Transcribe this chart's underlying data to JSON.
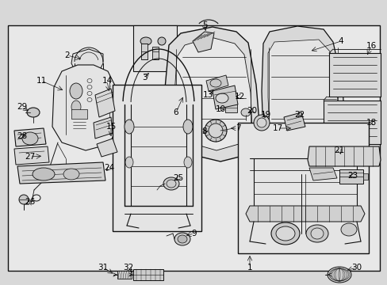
{
  "bg_color": "#d8d8d8",
  "border_color": "#111111",
  "line_color": "#111111",
  "label_color": "#000000",
  "inner_bg": "#e8e8e8",
  "figsize": [
    4.89,
    3.6
  ],
  "dpi": 100,
  "font_size": 7.5
}
